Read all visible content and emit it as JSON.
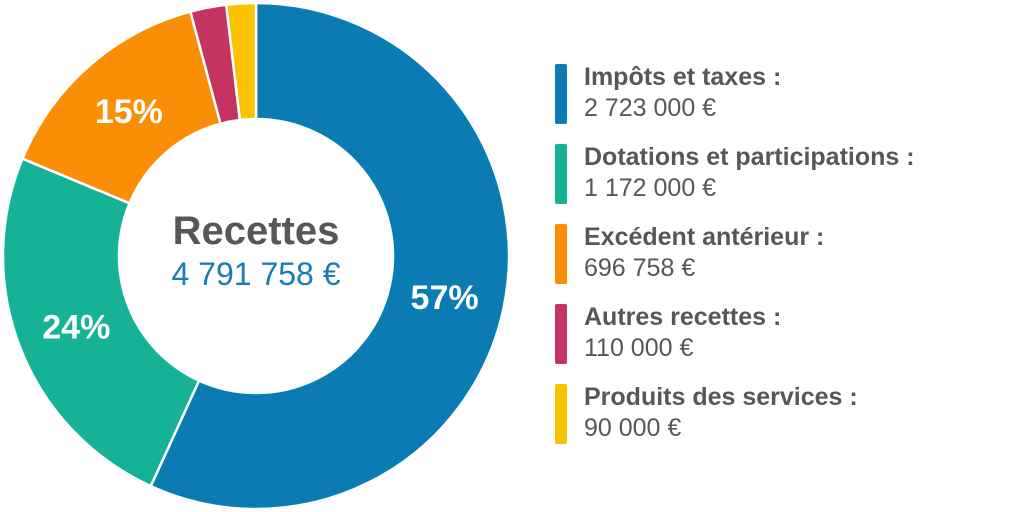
{
  "chart_data": {
    "type": "pie",
    "center": {
      "title": "Recettes",
      "total": "4 791 758 €"
    },
    "slices": [
      {
        "name": "Impôts et taxes :",
        "value_label": "2 723 000 €",
        "value": 2723000,
        "percent_label": "57%",
        "color": "#0a7bb3"
      },
      {
        "name": "Dotations et participations :",
        "value_label": "1 172 000 €",
        "value": 1172000,
        "percent_label": "24%",
        "color": "#15b295"
      },
      {
        "name": "Excédent antérieur :",
        "value_label": "696 758 €",
        "value": 696758,
        "percent_label": "15%",
        "color": "#fa8e06"
      },
      {
        "name": "Autres recettes :",
        "value_label": "110 000 €",
        "value": 110000,
        "percent_label": "",
        "color": "#c53360"
      },
      {
        "name": "Produits des services :",
        "value_label": "90 000 €",
        "value": 90000,
        "percent_label": "",
        "color": "#f8c300"
      }
    ]
  }
}
